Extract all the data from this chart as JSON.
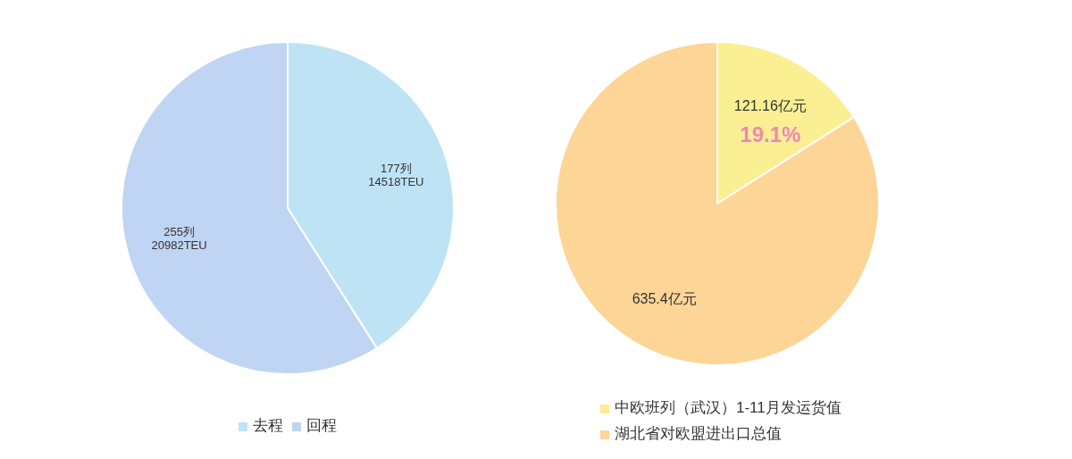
{
  "chart_data": [
    {
      "type": "pie",
      "categories": [
        "去程",
        "回程"
      ],
      "values": [
        177,
        255
      ],
      "colors": [
        "#bde3f5",
        "#c0d4f3"
      ],
      "value_labels": [
        "177列\n14518TEU",
        "255列\n20982TEU"
      ],
      "legend": "bottom"
    },
    {
      "type": "pie",
      "categories": [
        "中欧班列（武汉）1-11月发运货值",
        "湖北省对欧盟进出口总值"
      ],
      "values": [
        121.16,
        635.4
      ],
      "colors": [
        "#faef92",
        "#fcd597"
      ],
      "value_labels": [
        "121.16亿元",
        "635.4亿元"
      ],
      "annotations": [
        "19.1%"
      ],
      "legend": "bottom"
    }
  ]
}
